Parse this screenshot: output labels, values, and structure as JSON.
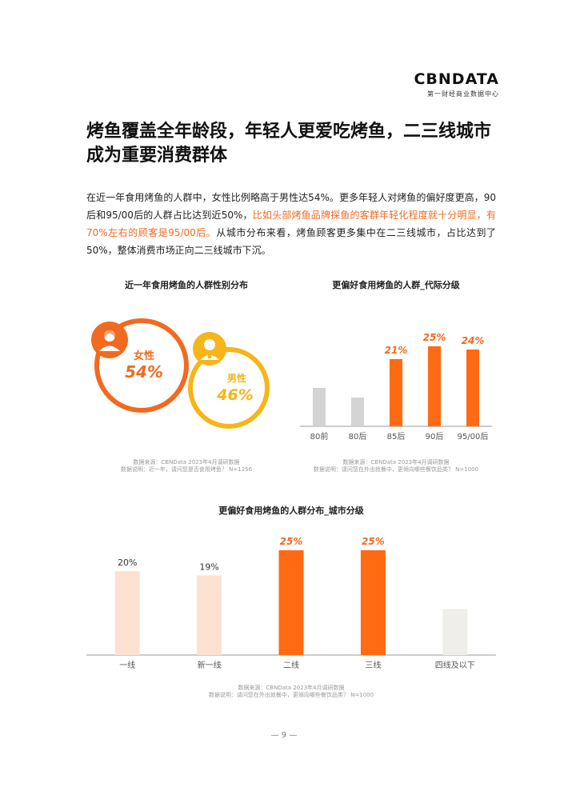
{
  "logo": {
    "main": "CBNDATA",
    "sub": "第一财经商业数据中心"
  },
  "title": "烤鱼覆盖全年龄段，年轻人更爱吃烤鱼，二三线城市成为重要消费群体",
  "intro": {
    "part1": "在近一年食用烤鱼的人群中，女性比例略高于男性达54%。更多年轻人对烤鱼的偏好度更高，90后和95/00后的人群占比达到近50%，",
    "highlight": "比如头部烤鱼品牌探鱼的客群年轻化程度就十分明显，有70%左右的顾客是95/00后。",
    "part2": "从城市分布来看，烤鱼顾客更多集中在二三线城市，占比达到了50%，整体消费市场正向二三线城市下沉。"
  },
  "gender_chart": {
    "title": "近一年食用烤鱼的人群性别分布",
    "female": {
      "label": "女性",
      "value": "54%"
    },
    "male": {
      "label": "男性",
      "value": "46%"
    },
    "note_source": "数据来源：CBNData 2023年4月调研数据",
    "note_desc": "数据说明：近一年，请问您是否食用烤鱼？ N=1256"
  },
  "chart_data": [
    {
      "type": "pie",
      "title": "近一年食用烤鱼的人群性别分布",
      "categories": [
        "女性",
        "男性"
      ],
      "values": [
        54,
        46
      ]
    },
    {
      "type": "bar",
      "title": "更偏好食用烤鱼的人群_代际分级",
      "categories": [
        "80前",
        "80后",
        "85后",
        "90后",
        "95/00后"
      ],
      "values": [
        12,
        9,
        21,
        25,
        24
      ],
      "labels": [
        "",
        "",
        "21%",
        "25%",
        "24%"
      ],
      "colors": [
        "#d4d4d4",
        "#d4d4d4",
        "#ff6a13",
        "#ff6a13",
        "#ff6a13"
      ],
      "note_source": "数据来源：CBNData 2023年4月调研数据",
      "note_desc": "数据说明：请问您在外出就餐中，更倾向哪些餐饮品类？ N=1000"
    },
    {
      "type": "bar",
      "title": "更偏好食用烤鱼的人群分布_城市分级",
      "categories": [
        "一线",
        "新一线",
        "二线",
        "三线",
        "四线及以下"
      ],
      "values": [
        20,
        19,
        25,
        25,
        11
      ],
      "labels": [
        "20%",
        "19%",
        "25%",
        "25%",
        ""
      ],
      "colors": [
        "#fde1d0",
        "#fde1d0",
        "#ff6a13",
        "#ff6a13",
        "#efeeeb"
      ],
      "note_source": "数据来源：CBNData 2023年4月调研数据",
      "note_desc": "数据说明：请问您在外出就餐中，更倾向哪些餐饮品类？ N=1000"
    }
  ],
  "page_number": "— 9 —",
  "colors": {
    "accent": "#ff6a13",
    "female_ring": "#f26a1f",
    "male_ring": "#f6b519"
  }
}
